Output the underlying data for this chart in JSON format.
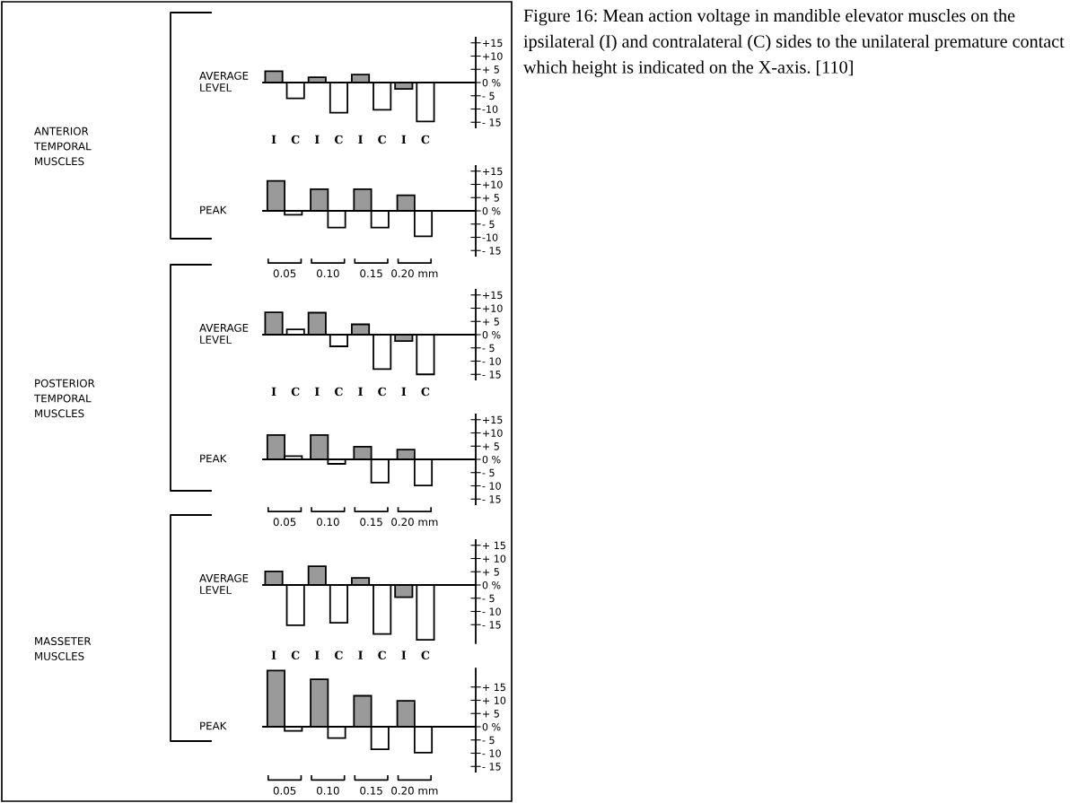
{
  "chart_data": [
    {
      "type": "bar",
      "ylabel": "AVERAGE LEVEL",
      "annotations": [
        "ANTERIOR\nTEMPORAL\nMUSCLES",
        "Figure 16: Mean action voltage in mandible elevator muscles on the ipsilateral (I) and contralateral (C) sides to the unilateral premature contact which height is indicated on the X-axis. [110]"
      ],
      "categories": [
        "I",
        "C",
        "I",
        "C",
        "I",
        "C",
        "I",
        "C"
      ],
      "values": [
        4.3,
        -6,
        2,
        -11.4,
        3,
        -10.3,
        -2.4,
        -14.7
      ],
      "colors": [
        "#9a9a9a",
        "#ffffff",
        "#9a9a9a",
        "#ffffff",
        "#9a9a9a",
        "#ffffff",
        "#9a9a9a",
        "#ffffff"
      ],
      "ylim": [
        -17,
        17
      ],
      "yticks": [
        {
          "value": 15,
          "label": "+15"
        },
        {
          "value": 10,
          "label": "+10"
        },
        {
          "value": 5,
          "label": "+ 5"
        },
        {
          "value": 0,
          "label": "0 %"
        },
        {
          "value": -5,
          "label": "- 5"
        },
        {
          "value": -10,
          "label": "-10"
        },
        {
          "value": -15,
          "label": "- 15"
        }
      ]
    },
    {
      "type": "bar",
      "ylabel": "PEAK",
      "categories": [
        "0.05",
        "0.10",
        "0.15",
        "0.20 mm"
      ],
      "series": [
        {
          "color": "#9a9a9a",
          "values": [
            11.3,
            8.2,
            8.2,
            5.9
          ]
        },
        {
          "color": "#ffffff",
          "values": [
            -1.5,
            -6.3,
            -6.3,
            -9.6
          ]
        }
      ],
      "ylim": [
        -17,
        17
      ],
      "yticks": [
        {
          "value": 15,
          "label": "+15"
        },
        {
          "value": 10,
          "label": "+10"
        },
        {
          "value": 5,
          "label": "+ 5"
        },
        {
          "value": 0,
          "label": "0 %"
        },
        {
          "value": -5,
          "label": "- 5"
        },
        {
          "value": -10,
          "label": "-10"
        },
        {
          "value": -15,
          "label": "- 15"
        }
      ]
    },
    {
      "type": "bar",
      "ylabel": "AVERAGE LEVEL",
      "annotations": [
        "POSTERIOR\nTEMPORAL\nMUSCLES"
      ],
      "categories": [
        "I",
        "C",
        "I",
        "C",
        "I",
        "C",
        "I",
        "C"
      ],
      "values": [
        8.4,
        2,
        8.3,
        -4.4,
        3.9,
        -13,
        -2.4,
        -15
      ],
      "colors": [
        "#9a9a9a",
        "#ffffff",
        "#9a9a9a",
        "#ffffff",
        "#9a9a9a",
        "#ffffff",
        "#9a9a9a",
        "#ffffff"
      ],
      "ylim": [
        -17,
        17
      ],
      "yticks": [
        {
          "value": 15,
          "label": "+15"
        },
        {
          "value": 10,
          "label": "+10"
        },
        {
          "value": 5,
          "label": "+ 5"
        },
        {
          "value": 0,
          "label": "0 %"
        },
        {
          "value": -5,
          "label": "- 5"
        },
        {
          "value": -10,
          "label": "- 10"
        },
        {
          "value": -15,
          "label": "- 15"
        }
      ]
    },
    {
      "type": "bar",
      "ylabel": "PEAK",
      "categories": [
        "0.05",
        "0.10",
        "0.15",
        "0.20 mm"
      ],
      "series": [
        {
          "color": "#9a9a9a",
          "values": [
            9.2,
            9.2,
            4.8,
            3.7
          ]
        },
        {
          "color": "#ffffff",
          "values": [
            1.2,
            -1.7,
            -8.8,
            -9.9
          ]
        }
      ],
      "ylim": [
        -17,
        17
      ],
      "yticks": [
        {
          "value": 15,
          "label": "+15"
        },
        {
          "value": 10,
          "label": "+10"
        },
        {
          "value": 5,
          "label": "+ 5"
        },
        {
          "value": 0,
          "label": "0 %"
        },
        {
          "value": -5,
          "label": "- 5"
        },
        {
          "value": -10,
          "label": "- 10"
        },
        {
          "value": -15,
          "label": "- 15"
        }
      ]
    },
    {
      "type": "bar",
      "ylabel": "AVERAGE LEVEL",
      "annotations": [
        "MASSETER\nMUSCLES"
      ],
      "categories": [
        "I",
        "C",
        "I",
        "C",
        "I",
        "C",
        "I",
        "C"
      ],
      "values": [
        5.1,
        -15.2,
        7.1,
        -14.3,
        2.7,
        -18.5,
        -4.6,
        -20.7
      ],
      "colors": [
        "#9a9a9a",
        "#ffffff",
        "#9a9a9a",
        "#ffffff",
        "#9a9a9a",
        "#ffffff",
        "#9a9a9a",
        "#ffffff"
      ],
      "ylim": [
        -22,
        17
      ],
      "yticks": [
        {
          "value": 15,
          "label": "+ 15"
        },
        {
          "value": 10,
          "label": "+ 10"
        },
        {
          "value": 5,
          "label": "+ 5"
        },
        {
          "value": 0,
          "label": "0 %"
        },
        {
          "value": -5,
          "label": "- 5"
        },
        {
          "value": -10,
          "label": "- 10"
        },
        {
          "value": -15,
          "label": "- 15"
        }
      ]
    },
    {
      "type": "bar",
      "ylabel": "PEAK",
      "categories": [
        "0.05",
        "0.10",
        "0.15",
        "0.20 mm"
      ],
      "series": [
        {
          "color": "#9a9a9a",
          "values": [
            21.2,
            17.9,
            11.7,
            9.8
          ]
        },
        {
          "color": "#ffffff",
          "values": [
            -1.6,
            -4.3,
            -8.5,
            -9.8
          ]
        }
      ],
      "ylim": [
        -17,
        22
      ],
      "yticks": [
        {
          "value": 15,
          "label": "+ 15"
        },
        {
          "value": 10,
          "label": "+ 10"
        },
        {
          "value": 5,
          "label": "+ 5"
        },
        {
          "value": 0,
          "label": "0 %"
        },
        {
          "value": -5,
          "label": "- 5"
        },
        {
          "value": -10,
          "label": "- 10"
        },
        {
          "value": -15,
          "label": "- 15"
        }
      ]
    }
  ]
}
